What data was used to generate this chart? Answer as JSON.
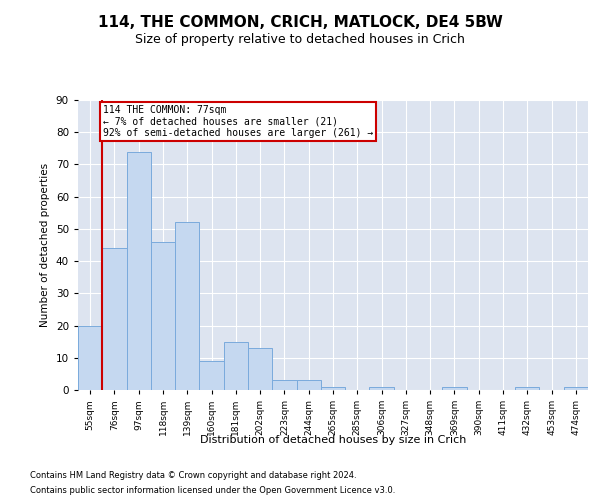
{
  "title": "114, THE COMMON, CRICH, MATLOCK, DE4 5BW",
  "subtitle": "Size of property relative to detached houses in Crich",
  "xlabel": "Distribution of detached houses by size in Crich",
  "ylabel": "Number of detached properties",
  "categories": [
    "55sqm",
    "76sqm",
    "97sqm",
    "118sqm",
    "139sqm",
    "160sqm",
    "181sqm",
    "202sqm",
    "223sqm",
    "244sqm",
    "265sqm",
    "285sqm",
    "306sqm",
    "327sqm",
    "348sqm",
    "369sqm",
    "390sqm",
    "411sqm",
    "432sqm",
    "453sqm",
    "474sqm"
  ],
  "values": [
    20,
    44,
    74,
    46,
    52,
    9,
    15,
    13,
    3,
    3,
    1,
    0,
    1,
    0,
    0,
    1,
    0,
    0,
    1,
    0,
    1
  ],
  "bar_color": "#c5d8f0",
  "bar_edge_color": "#7aaadc",
  "vline_color": "#cc0000",
  "vline_x": 0.5,
  "annotation_text": "114 THE COMMON: 77sqm\n← 7% of detached houses are smaller (21)\n92% of semi-detached houses are larger (261) →",
  "annotation_box_color": "#ffffff",
  "annotation_box_edge": "#cc0000",
  "ylim": [
    0,
    90
  ],
  "yticks": [
    0,
    10,
    20,
    30,
    40,
    50,
    60,
    70,
    80,
    90
  ],
  "background_color": "#dde4f0",
  "footer_line1": "Contains HM Land Registry data © Crown copyright and database right 2024.",
  "footer_line2": "Contains public sector information licensed under the Open Government Licence v3.0.",
  "title_fontsize": 11,
  "subtitle_fontsize": 9,
  "footer_fontsize": 6
}
